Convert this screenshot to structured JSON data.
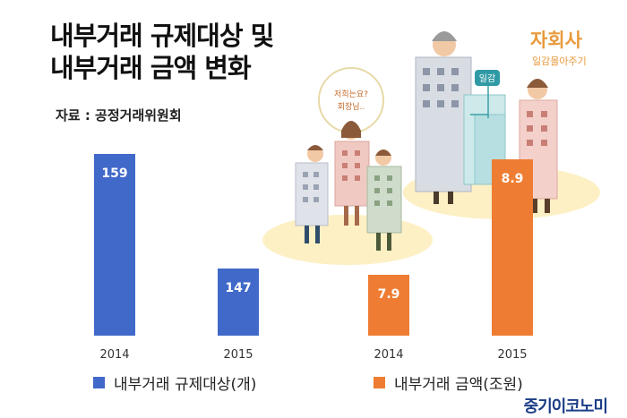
{
  "title_lines": [
    "내부거래 규제대상 및",
    "내부거래 금액 변화"
  ],
  "source": "자료 : 공정거래위원회",
  "chart_data": [
    {
      "type": "bar",
      "categories": [
        "2014",
        "2015"
      ],
      "series": [
        {
          "name": "내부거래 규제대상(개)",
          "values": [
            159,
            147
          ]
        }
      ],
      "value_labels": [
        "159",
        "147"
      ],
      "color": "#4169c9"
    },
    {
      "type": "bar",
      "categories": [
        "2014",
        "2015"
      ],
      "series": [
        {
          "name": "내부거래 금액(조원)",
          "values": [
            7.9,
            8.9
          ]
        }
      ],
      "value_labels": [
        "7.9",
        "8.9"
      ],
      "color": "#ee7d33"
    }
  ],
  "illustration": {
    "company_label": "자회사",
    "company_sublabel": "일감몰아주기",
    "box_label": "일감",
    "speech": [
      "저희는요?",
      "회장님.."
    ]
  },
  "brand": "중기이코노미"
}
